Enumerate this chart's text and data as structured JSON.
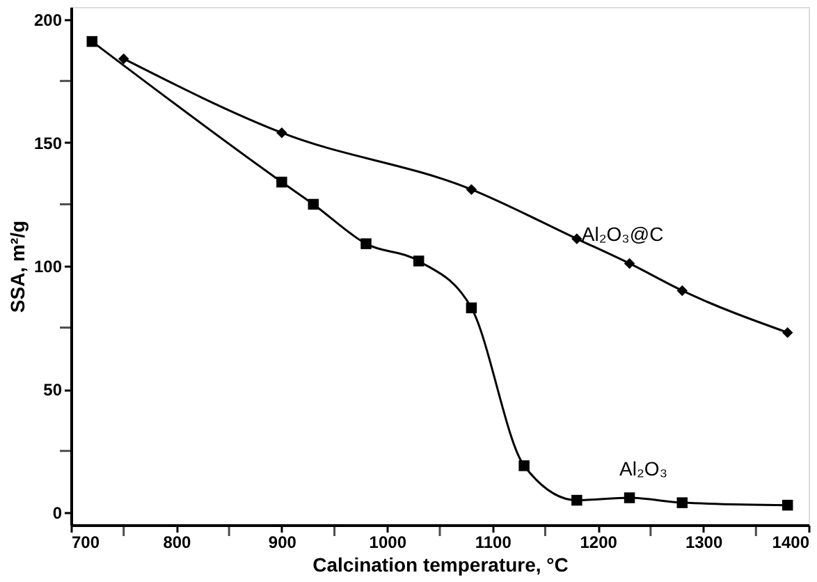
{
  "chart_data": {
    "type": "line",
    "xlabel": "Calcination temperature, °C",
    "ylabel": "SSA, m²/g",
    "xlim": [
      700,
      1400
    ],
    "ylim": [
      -5,
      205
    ],
    "xticks": [
      700,
      {
        "value": 750,
        "label": null
      },
      800,
      {
        "value": 850,
        "label": null
      },
      900,
      {
        "value": 950,
        "label": null
      },
      1000,
      {
        "value": 1050,
        "label": null
      },
      1100,
      {
        "value": 1150,
        "label": null
      },
      1200,
      {
        "value": 1250,
        "label": null
      },
      1300,
      {
        "value": 1350,
        "label": null
      },
      1400
    ],
    "yticks": [
      0,
      {
        "value": 25,
        "label": null
      },
      50,
      {
        "value": 75,
        "label": null
      },
      100,
      {
        "value": 125,
        "label": null
      },
      150,
      {
        "value": 175,
        "label": null
      },
      200
    ],
    "grid": false,
    "line_style": "solid",
    "series": [
      {
        "name": "Al₂O₃@C",
        "color": "#000000",
        "marker": "diamond",
        "x": [
          750,
          900,
          1080,
          1180,
          1230,
          1280,
          1380
        ],
        "values": [
          184,
          154,
          131,
          111,
          101,
          90,
          73
        ]
      },
      {
        "name": "Al₂O₃",
        "color": "#000000",
        "marker": "square",
        "x": [
          720,
          900,
          930,
          980,
          1030,
          1080,
          1130,
          1180,
          1230,
          1280,
          1380
        ],
        "values": [
          191,
          134,
          125,
          109,
          102,
          83,
          19,
          5,
          6,
          4,
          3
        ]
      }
    ]
  }
}
